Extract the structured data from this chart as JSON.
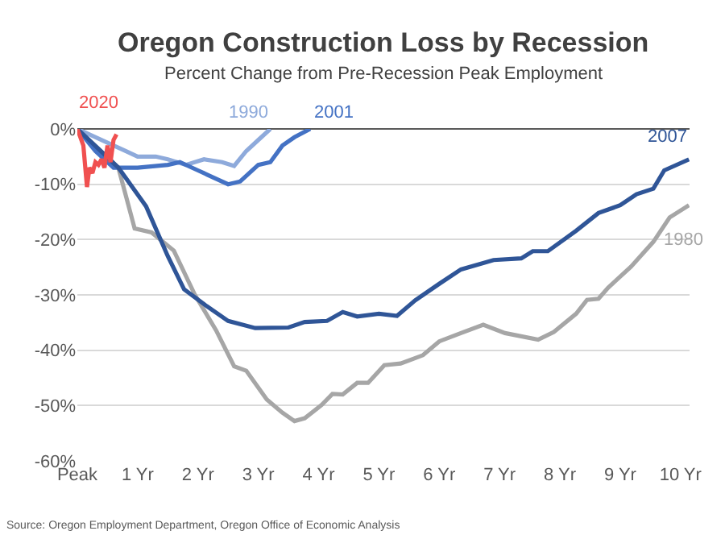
{
  "chart_data": {
    "type": "line",
    "title": "Oregon Construction Loss by Recession",
    "subtitle": "Percent Change from Pre-Recession Peak Employment",
    "annotations": [
      "Source: Oregon Employment Department, Oregon Office of Economic Analysis"
    ],
    "xlim": [
      0,
      10.15
    ],
    "xticks": [
      {
        "value": 0,
        "label": "Peak"
      },
      {
        "value": 1,
        "label": "1 Yr"
      },
      {
        "value": 2,
        "label": "2 Yr"
      },
      {
        "value": 3,
        "label": "3 Yr"
      },
      {
        "value": 4,
        "label": "4 Yr"
      },
      {
        "value": 5,
        "label": "5 Yr"
      },
      {
        "value": 6,
        "label": "6 Yr"
      },
      {
        "value": 7,
        "label": "7 Yr"
      },
      {
        "value": 8,
        "label": "8 Yr"
      },
      {
        "value": 9,
        "label": "9 Yr"
      },
      {
        "value": 10,
        "label": "10 Yr"
      }
    ],
    "ylim": [
      -60,
      0
    ],
    "yticks": [
      {
        "value": 0,
        "label": "0%"
      },
      {
        "value": -10,
        "label": "-10%"
      },
      {
        "value": -20,
        "label": "-20%"
      },
      {
        "value": -30,
        "label": "-30%"
      },
      {
        "value": -40,
        "label": "-40%"
      },
      {
        "value": -50,
        "label": "-50%"
      },
      {
        "value": -60,
        "label": "-60%"
      }
    ],
    "grid": "y",
    "legend": false,
    "line_style": "solid",
    "marker": "none",
    "series": [
      {
        "name": "1980",
        "color": "#a6a6a6",
        "x": [
          0,
          0.68,
          0.95,
          1.23,
          1.6,
          1.95,
          2.3,
          2.6,
          2.8,
          3.14,
          3.4,
          3.6,
          3.77,
          4.05,
          4.23,
          4.4,
          4.64,
          4.82,
          5.09,
          5.36,
          5.73,
          6.0,
          6.36,
          6.73,
          7.09,
          7.64,
          7.9,
          8.27,
          8.45,
          8.64,
          8.8,
          9.18,
          9.55,
          9.82,
          10.14
        ],
        "values": [
          0,
          -7,
          -18,
          -18.7,
          -22,
          -30,
          -36.4,
          -42.9,
          -43.7,
          -48.9,
          -51.3,
          -52.8,
          -52.3,
          -49.9,
          -47.9,
          -48,
          -45.9,
          -45.9,
          -42.7,
          -42.4,
          -40.9,
          -38.4,
          -36.9,
          -35.4,
          -36.9,
          -38.1,
          -36.7,
          -33.4,
          -30.9,
          -30.7,
          -28.7,
          -24.9,
          -20.4,
          -16,
          -13.8
        ]
      },
      {
        "name": "1990",
        "color": "#8eaadb",
        "x": [
          0,
          0.5,
          0.8,
          1.0,
          1.3,
          1.5,
          1.8,
          2.1,
          2.4,
          2.6,
          2.8,
          3.0,
          3.2
        ],
        "values": [
          0,
          -2.5,
          -4,
          -5,
          -5,
          -5.5,
          -6.5,
          -5.5,
          -6,
          -6.7,
          -4,
          -2,
          0
        ]
      },
      {
        "name": "2001",
        "color": "#4472c4",
        "x": [
          0,
          0.3,
          0.6,
          1.0,
          1.5,
          1.7,
          2.0,
          2.3,
          2.5,
          2.7,
          3.0,
          3.2,
          3.4,
          3.6,
          3.86
        ],
        "values": [
          0,
          -4,
          -7,
          -7,
          -6.5,
          -6,
          -7.5,
          -9,
          -10,
          -9.5,
          -6.5,
          -6,
          -3,
          -1.5,
          0
        ]
      },
      {
        "name": "2007",
        "color": "#2f5597",
        "x": [
          0,
          0.68,
          1.14,
          1.5,
          1.77,
          2.14,
          2.5,
          2.95,
          3.5,
          3.77,
          4.14,
          4.4,
          4.64,
          5.0,
          5.3,
          5.6,
          6.0,
          6.36,
          6.9,
          7.36,
          7.55,
          7.8,
          8.27,
          8.64,
          9.0,
          9.27,
          9.55,
          9.73,
          10.14
        ],
        "values": [
          0,
          -7,
          -14,
          -23,
          -29,
          -32,
          -34.7,
          -36,
          -35.9,
          -34.9,
          -34.7,
          -33.1,
          -33.9,
          -33.4,
          -33.8,
          -31,
          -28,
          -25.4,
          -23.7,
          -23.4,
          -22.1,
          -22.1,
          -18.4,
          -15.2,
          -13.8,
          -11.8,
          -10.8,
          -7.5,
          -5.5
        ]
      },
      {
        "name": "2020",
        "color": "#f05050",
        "x": [
          0,
          0.1,
          0.16,
          0.2,
          0.25,
          0.3,
          0.35,
          0.4,
          0.45,
          0.5,
          0.55,
          0.6,
          0.65
        ],
        "values": [
          0,
          -3,
          -10.5,
          -7,
          -8,
          -6,
          -6.5,
          -5.5,
          -7,
          -3,
          -6,
          -2,
          -1
        ]
      }
    ]
  }
}
